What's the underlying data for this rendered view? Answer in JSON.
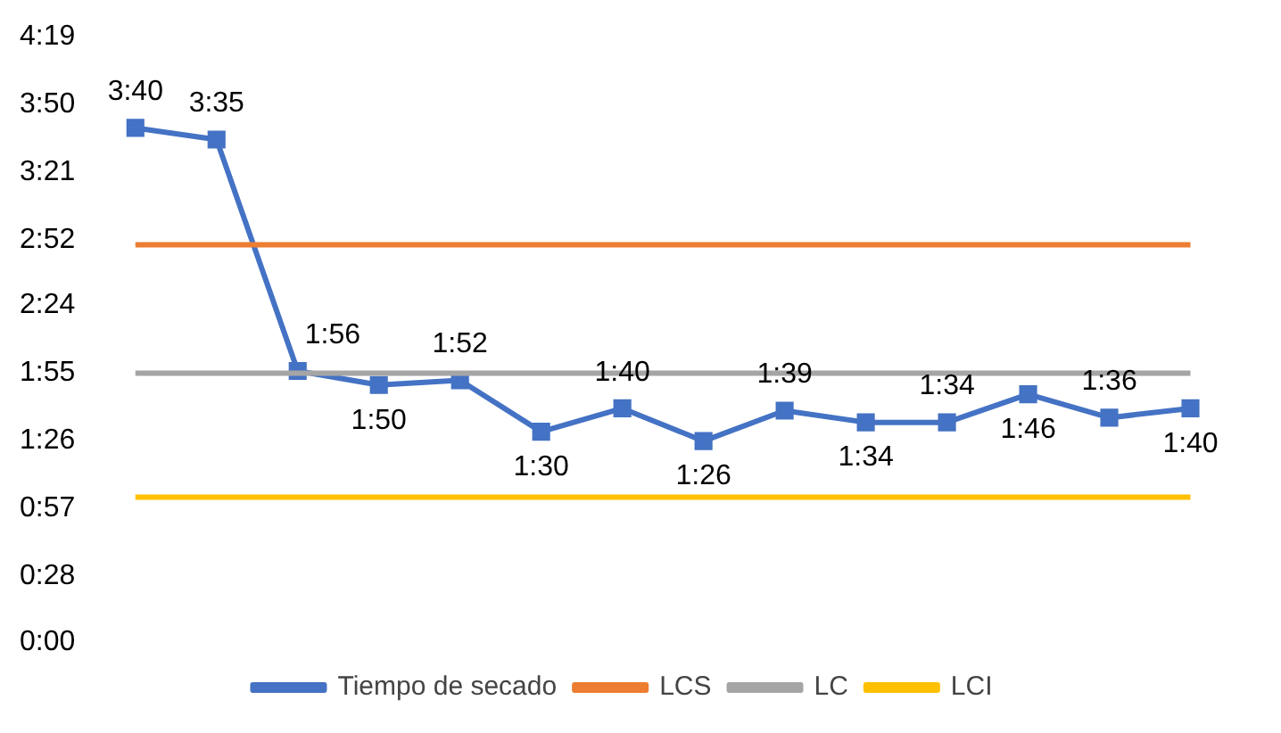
{
  "chart_data": {
    "type": "line",
    "categories": [
      null,
      null,
      null,
      null,
      null,
      null,
      null,
      null,
      null,
      null,
      null,
      null,
      null,
      null
    ],
    "series": [
      {
        "name": "Tiempo de secado",
        "color": "#4472c4",
        "marker": "square",
        "values": [
          220,
          215,
          116,
          110,
          112,
          90,
          100,
          86,
          99,
          94,
          94,
          106,
          96,
          100
        ]
      },
      {
        "name": "LCS",
        "color": "#ed7d31",
        "marker": "none",
        "values": [
          170,
          170,
          170,
          170,
          170,
          170,
          170,
          170,
          170,
          170,
          170,
          170,
          170,
          170
        ]
      },
      {
        "name": "LC",
        "color": "#a5a5a5",
        "marker": "none",
        "values": [
          115,
          115,
          115,
          115,
          115,
          115,
          115,
          115,
          115,
          115,
          115,
          115,
          115,
          115
        ]
      },
      {
        "name": "LCI",
        "color": "#ffc000",
        "marker": "none",
        "values": [
          62,
          62,
          62,
          62,
          62,
          62,
          62,
          62,
          62,
          62,
          62,
          62,
          62,
          62
        ]
      }
    ],
    "value_labels": [
      "3:40",
      "3:35",
      "1:56",
      "1:50",
      "1:52",
      "1:30",
      "1:40",
      "1:26",
      "1:39",
      "1:34",
      "1:34",
      "1:46",
      "1:36",
      "1:40"
    ],
    "ylim": [
      0,
      259
    ],
    "yticks": [
      {
        "value": 0,
        "label": "0:00"
      },
      {
        "value": 28,
        "label": "0:28"
      },
      {
        "value": 57,
        "label": "0:57"
      },
      {
        "value": 86,
        "label": "1:26"
      },
      {
        "value": 115,
        "label": "1:55"
      },
      {
        "value": 144,
        "label": "2:24"
      },
      {
        "value": 172,
        "label": "2:52"
      },
      {
        "value": 201,
        "label": "3:21"
      },
      {
        "value": 230,
        "label": "3:50"
      },
      {
        "value": 259,
        "label": "4:19"
      }
    ],
    "tick_labels": "y",
    "grid": false,
    "legend": "bottom"
  }
}
